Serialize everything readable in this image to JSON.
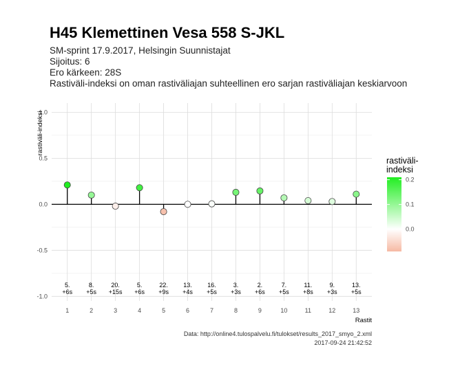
{
  "header": {
    "title": "H45 Klemettinen Vesa 558 S-JKL",
    "subtitle_lines": [
      "SM-sprint 17.9.2017, Helsingin Suunnistajat",
      "Sijoitus: 6",
      "Ero kärkeen: 28S",
      "Rastiväli-indeksi on oman rastiväliajan suhteellinen ero sarjan rastiväliajan keskiarvoon"
    ]
  },
  "caption": {
    "source": "Data: http://online4.tulospalvelu.fi/tulokset/results_2017_smyo_2.xml",
    "timestamp": "2017-09-24 21:42:52"
  },
  "legend": {
    "title_lines": [
      "rastiväli-",
      "indeksi"
    ],
    "ticks": [
      "0.2",
      "0.1",
      "0.0"
    ],
    "tick_values": [
      0.2,
      0.1,
      0.0
    ],
    "range": [
      -0.09,
      0.21
    ],
    "colors": {
      "low": "#f6b9a3",
      "mid": "#ffffff",
      "high": "#22ee22"
    }
  },
  "chart_data": {
    "type": "scatter",
    "style": "lollipop",
    "xlabel": "Rastit",
    "ylabel": "rastiväli-indeksi",
    "x": [
      1,
      2,
      3,
      4,
      5,
      6,
      7,
      8,
      9,
      10,
      11,
      12,
      13
    ],
    "values": [
      0.21,
      0.1,
      -0.02,
      0.18,
      -0.08,
      0.0,
      0.005,
      0.13,
      0.145,
      0.07,
      0.04,
      0.03,
      0.11
    ],
    "labels_rank": [
      "5.",
      "8.",
      "20.",
      "5.",
      "22.",
      "13.",
      "16.",
      "3.",
      "2.",
      "7.",
      "11.",
      "9.",
      "13."
    ],
    "labels_diff": [
      "+6s",
      "+5s",
      "+15s",
      "+6s",
      "+9s",
      "+4s",
      "+5s",
      "+3s",
      "+6s",
      "+5s",
      "+8s",
      "+3s",
      "+5s"
    ],
    "annotation_y": -0.93,
    "xlim": [
      0.35,
      13.65
    ],
    "ylim": [
      -1.05,
      1.1
    ],
    "yticks": [
      1.0,
      0.5,
      0.0,
      -0.5,
      -1.0
    ],
    "ytick_labels": [
      "1.0",
      "0.5",
      "0.0",
      "-0.5",
      "-1.0"
    ],
    "xtick_labels": [
      "1",
      "2",
      "3",
      "4",
      "5",
      "6",
      "7",
      "8",
      "9",
      "10",
      "11",
      "12",
      "13"
    ],
    "grid": true
  }
}
